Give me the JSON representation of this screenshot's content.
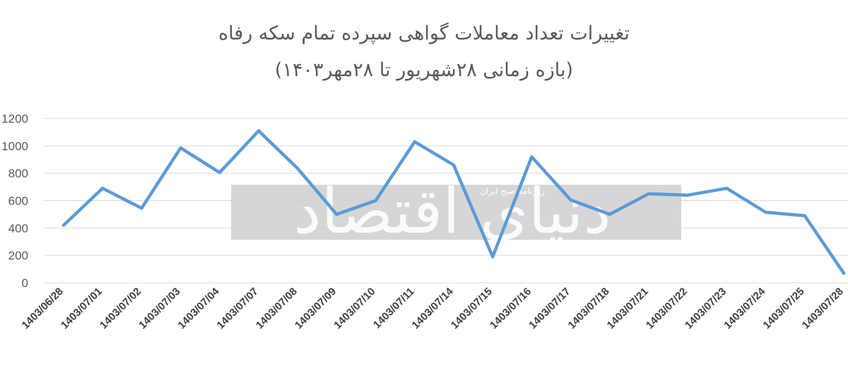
{
  "chart_data": {
    "type": "line",
    "title": "تغییرات تعداد معاملات گواهی سپرده تمام سکه رفاه",
    "subtitle": "(بازه زمانی ۲۸شهریور تا ۲۸مهر۱۴۰۳)",
    "xlabel": "",
    "ylabel": "",
    "ylim": [
      0,
      1200
    ],
    "yticks": [
      "0",
      "200",
      "400",
      "600",
      "800",
      "1000",
      "1200"
    ],
    "grid": true,
    "legend": "none",
    "line_color": "#5B9BD5",
    "categories": [
      "1403/06/28",
      "1403/07/01",
      "1403/07/02",
      "1403/07/03",
      "1403/07/04",
      "1403/07/07",
      "1403/07/08",
      "1403/07/09",
      "1403/07/10",
      "1403/07/11",
      "1403/07/14",
      "1403/07/15",
      "1403/07/16",
      "1403/07/17",
      "1403/07/18",
      "1403/07/21",
      "1403/07/22",
      "1403/07/23",
      "1403/07/24",
      "1403/07/25",
      "1403/07/28"
    ],
    "series": [
      {
        "values": [
          420,
          690,
          545,
          985,
          805,
          1110,
          835,
          500,
          600,
          1030,
          860,
          190,
          920,
          605,
          500,
          650,
          640,
          690,
          515,
          490,
          70
        ]
      }
    ]
  },
  "watermark": {
    "logo_text": "دنیای اقتصاد",
    "tagline": "روزنامه صبح ایران"
  }
}
